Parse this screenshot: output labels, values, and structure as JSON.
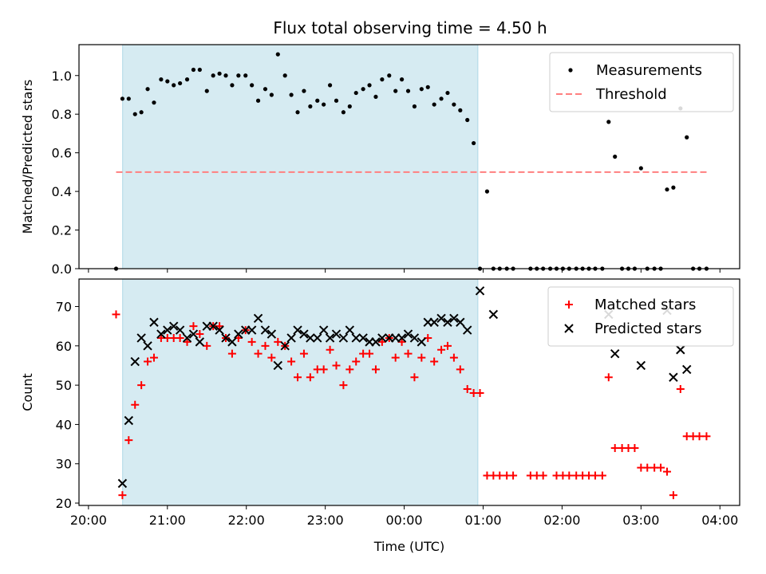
{
  "title": "Flux total observing time = 4.50 h",
  "chart_data": [
    {
      "type": "scatter",
      "title": "Flux total observing time = 4.50 h",
      "xlabel": "",
      "ylabel": "Matched/Predicted stars",
      "xlim": [
        -0.12,
        8.25
      ],
      "ylim": [
        0,
        1.16
      ],
      "x_tick_values": [
        0,
        1,
        2,
        3,
        4,
        5,
        6,
        7,
        8
      ],
      "x_tick_labels": [
        "20:00",
        "21:00",
        "22:00",
        "23:00",
        "00:00",
        "01:00",
        "02:00",
        "03:00",
        "04:00"
      ],
      "x_tick_labels_visible": false,
      "y_tick_values": [
        0,
        0.2,
        0.4,
        0.6,
        0.8,
        1.0
      ],
      "y_tick_labels": [
        "0.0",
        "0.2",
        "0.4",
        "0.6",
        "0.8",
        "1.0"
      ],
      "grid": false,
      "legend": "top-right",
      "shaded_interval": {
        "x": [
          0.433,
          4.933
        ],
        "color": "#add8e6"
      },
      "series": [
        {
          "name": "Measurements",
          "marker": "dot",
          "color": "#000000",
          "points": [
            [
              0.35,
              0
            ],
            [
              0.43,
              0.88
            ],
            [
              0.51,
              0.88
            ],
            [
              0.59,
              0.8
            ],
            [
              0.67,
              0.81
            ],
            [
              0.75,
              0.93
            ],
            [
              0.83,
              0.86
            ],
            [
              0.92,
              0.98
            ],
            [
              1.0,
              0.97
            ],
            [
              1.08,
              0.95
            ],
            [
              1.16,
              0.96
            ],
            [
              1.25,
              0.98
            ],
            [
              1.33,
              1.03
            ],
            [
              1.41,
              1.03
            ],
            [
              1.5,
              0.92
            ],
            [
              1.58,
              1.0
            ],
            [
              1.66,
              1.01
            ],
            [
              1.74,
              1.0
            ],
            [
              1.82,
              0.95
            ],
            [
              1.9,
              1.0
            ],
            [
              1.99,
              1.0
            ],
            [
              2.07,
              0.95
            ],
            [
              2.15,
              0.87
            ],
            [
              2.24,
              0.93
            ],
            [
              2.32,
              0.9
            ],
            [
              2.4,
              1.11
            ],
            [
              2.49,
              1.0
            ],
            [
              2.57,
              0.9
            ],
            [
              2.65,
              0.81
            ],
            [
              2.73,
              0.92
            ],
            [
              2.81,
              0.84
            ],
            [
              2.9,
              0.87
            ],
            [
              2.98,
              0.85
            ],
            [
              3.06,
              0.95
            ],
            [
              3.14,
              0.87
            ],
            [
              3.23,
              0.81
            ],
            [
              3.31,
              0.84
            ],
            [
              3.39,
              0.91
            ],
            [
              3.48,
              0.93
            ],
            [
              3.56,
              0.95
            ],
            [
              3.64,
              0.89
            ],
            [
              3.72,
              0.98
            ],
            [
              3.81,
              1.0
            ],
            [
              3.89,
              0.92
            ],
            [
              3.97,
              0.98
            ],
            [
              4.05,
              0.92
            ],
            [
              4.13,
              0.84
            ],
            [
              4.22,
              0.93
            ],
            [
              4.3,
              0.94
            ],
            [
              4.38,
              0.85
            ],
            [
              4.47,
              0.88
            ],
            [
              4.55,
              0.91
            ],
            [
              4.63,
              0.85
            ],
            [
              4.71,
              0.82
            ],
            [
              4.8,
              0.77
            ],
            [
              4.88,
              0.65
            ],
            [
              4.96,
              0
            ],
            [
              5.05,
              0.4
            ],
            [
              5.13,
              0
            ],
            [
              5.21,
              0
            ],
            [
              5.3,
              0
            ],
            [
              5.38,
              0
            ],
            [
              5.6,
              0
            ],
            [
              5.68,
              0
            ],
            [
              5.76,
              0
            ],
            [
              5.85,
              0
            ],
            [
              5.93,
              0
            ],
            [
              6.01,
              0
            ],
            [
              6.09,
              0
            ],
            [
              6.18,
              0
            ],
            [
              6.26,
              0
            ],
            [
              6.34,
              0
            ],
            [
              6.42,
              0
            ],
            [
              6.51,
              0
            ],
            [
              6.59,
              0.76
            ],
            [
              6.67,
              0.58
            ],
            [
              6.76,
              0
            ],
            [
              6.84,
              0
            ],
            [
              6.92,
              0
            ],
            [
              7.0,
              0.52
            ],
            [
              7.08,
              0
            ],
            [
              7.17,
              0
            ],
            [
              7.25,
              0
            ],
            [
              7.33,
              0.41
            ],
            [
              7.41,
              0.42
            ],
            [
              7.5,
              0.83
            ],
            [
              7.58,
              0.68
            ],
            [
              7.66,
              0
            ],
            [
              7.74,
              0
            ],
            [
              7.83,
              0
            ]
          ]
        },
        {
          "name": "Threshold",
          "marker": "dashed-line",
          "color": "#ff7f7f",
          "points": [
            [
              0.35,
              0.5
            ],
            [
              7.87,
              0.5
            ]
          ]
        }
      ]
    },
    {
      "type": "scatter",
      "title": "",
      "xlabel": "Time (UTC)",
      "ylabel": "Count",
      "xlim": [
        -0.12,
        8.25
      ],
      "ylim": [
        19.4,
        77.0
      ],
      "x_tick_values": [
        0,
        1,
        2,
        3,
        4,
        5,
        6,
        7,
        8
      ],
      "x_tick_labels": [
        "20:00",
        "21:00",
        "22:00",
        "23:00",
        "00:00",
        "01:00",
        "02:00",
        "03:00",
        "04:00"
      ],
      "x_tick_labels_visible": true,
      "y_tick_values": [
        20,
        30,
        40,
        50,
        60,
        70
      ],
      "y_tick_labels": [
        "20",
        "30",
        "40",
        "50",
        "60",
        "70"
      ],
      "grid": false,
      "legend": "top-right",
      "shaded_interval": {
        "x": [
          0.433,
          4.933
        ],
        "color": "#add8e6"
      },
      "series": [
        {
          "name": "Matched stars",
          "marker": "plus",
          "color": "#ff0000",
          "points": [
            [
              0.35,
              68
            ],
            [
              0.43,
              22
            ],
            [
              0.51,
              36
            ],
            [
              0.59,
              45
            ],
            [
              0.67,
              50
            ],
            [
              0.75,
              56
            ],
            [
              0.83,
              57
            ],
            [
              0.92,
              62
            ],
            [
              1.0,
              62
            ],
            [
              1.08,
              62
            ],
            [
              1.16,
              62
            ],
            [
              1.25,
              61
            ],
            [
              1.33,
              65
            ],
            [
              1.41,
              63
            ],
            [
              1.5,
              60
            ],
            [
              1.58,
              65
            ],
            [
              1.66,
              65
            ],
            [
              1.74,
              62
            ],
            [
              1.82,
              58
            ],
            [
              1.9,
              62
            ],
            [
              1.99,
              64
            ],
            [
              2.07,
              61
            ],
            [
              2.15,
              58
            ],
            [
              2.24,
              60
            ],
            [
              2.32,
              57
            ],
            [
              2.4,
              61
            ],
            [
              2.49,
              60
            ],
            [
              2.57,
              56
            ],
            [
              2.65,
              52
            ],
            [
              2.73,
              58
            ],
            [
              2.81,
              52
            ],
            [
              2.9,
              54
            ],
            [
              2.98,
              54
            ],
            [
              3.06,
              59
            ],
            [
              3.14,
              55
            ],
            [
              3.23,
              50
            ],
            [
              3.31,
              54
            ],
            [
              3.39,
              56
            ],
            [
              3.48,
              58
            ],
            [
              3.56,
              58
            ],
            [
              3.64,
              54
            ],
            [
              3.72,
              61
            ],
            [
              3.81,
              62
            ],
            [
              3.89,
              57
            ],
            [
              3.97,
              61
            ],
            [
              4.05,
              58
            ],
            [
              4.13,
              52
            ],
            [
              4.22,
              57
            ],
            [
              4.3,
              62
            ],
            [
              4.38,
              56
            ],
            [
              4.47,
              59
            ],
            [
              4.55,
              60
            ],
            [
              4.63,
              57
            ],
            [
              4.71,
              54
            ],
            [
              4.8,
              49
            ],
            [
              4.88,
              48
            ],
            [
              4.96,
              48
            ],
            [
              5.05,
              27
            ],
            [
              5.13,
              27
            ],
            [
              5.21,
              27
            ],
            [
              5.3,
              27
            ],
            [
              5.38,
              27
            ],
            [
              5.6,
              27
            ],
            [
              5.68,
              27
            ],
            [
              5.76,
              27
            ],
            [
              5.93,
              27
            ],
            [
              6.01,
              27
            ],
            [
              6.09,
              27
            ],
            [
              6.18,
              27
            ],
            [
              6.26,
              27
            ],
            [
              6.34,
              27
            ],
            [
              6.42,
              27
            ],
            [
              6.51,
              27
            ],
            [
              6.59,
              52
            ],
            [
              6.67,
              34
            ],
            [
              6.76,
              34
            ],
            [
              6.84,
              34
            ],
            [
              6.92,
              34
            ],
            [
              7.0,
              29
            ],
            [
              7.08,
              29
            ],
            [
              7.17,
              29
            ],
            [
              7.25,
              29
            ],
            [
              7.33,
              28
            ],
            [
              7.41,
              22
            ],
            [
              7.5,
              49
            ],
            [
              7.58,
              37
            ],
            [
              7.66,
              37
            ],
            [
              7.74,
              37
            ],
            [
              7.83,
              37
            ]
          ]
        },
        {
          "name": "Predicted stars",
          "marker": "x",
          "color": "#000000",
          "points": [
            [
              0.43,
              25
            ],
            [
              0.51,
              41
            ],
            [
              0.59,
              56
            ],
            [
              0.67,
              62
            ],
            [
              0.75,
              60
            ],
            [
              0.83,
              66
            ],
            [
              0.92,
              63
            ],
            [
              1.0,
              64
            ],
            [
              1.08,
              65
            ],
            [
              1.16,
              64
            ],
            [
              1.25,
              62
            ],
            [
              1.33,
              63
            ],
            [
              1.41,
              61
            ],
            [
              1.5,
              65
            ],
            [
              1.58,
              65
            ],
            [
              1.66,
              64
            ],
            [
              1.74,
              62
            ],
            [
              1.82,
              61
            ],
            [
              1.9,
              63
            ],
            [
              1.99,
              64
            ],
            [
              2.07,
              64
            ],
            [
              2.15,
              67
            ],
            [
              2.24,
              64
            ],
            [
              2.32,
              63
            ],
            [
              2.4,
              55
            ],
            [
              2.49,
              60
            ],
            [
              2.57,
              62
            ],
            [
              2.65,
              64
            ],
            [
              2.73,
              63
            ],
            [
              2.81,
              62
            ],
            [
              2.9,
              62
            ],
            [
              2.98,
              64
            ],
            [
              3.06,
              62
            ],
            [
              3.14,
              63
            ],
            [
              3.23,
              62
            ],
            [
              3.31,
              64
            ],
            [
              3.39,
              62
            ],
            [
              3.48,
              62
            ],
            [
              3.56,
              61
            ],
            [
              3.64,
              61
            ],
            [
              3.72,
              62
            ],
            [
              3.81,
              62
            ],
            [
              3.89,
              62
            ],
            [
              3.97,
              62
            ],
            [
              4.05,
              63
            ],
            [
              4.13,
              62
            ],
            [
              4.22,
              61
            ],
            [
              4.3,
              66
            ],
            [
              4.38,
              66
            ],
            [
              4.47,
              67
            ],
            [
              4.55,
              66
            ],
            [
              4.63,
              67
            ],
            [
              4.71,
              66
            ],
            [
              4.8,
              64
            ],
            [
              4.96,
              74
            ],
            [
              5.13,
              68
            ],
            [
              6.59,
              68
            ],
            [
              6.67,
              58
            ],
            [
              7.0,
              55
            ],
            [
              7.33,
              69
            ],
            [
              7.41,
              52
            ],
            [
              7.5,
              59
            ],
            [
              7.58,
              54
            ]
          ]
        }
      ]
    }
  ]
}
